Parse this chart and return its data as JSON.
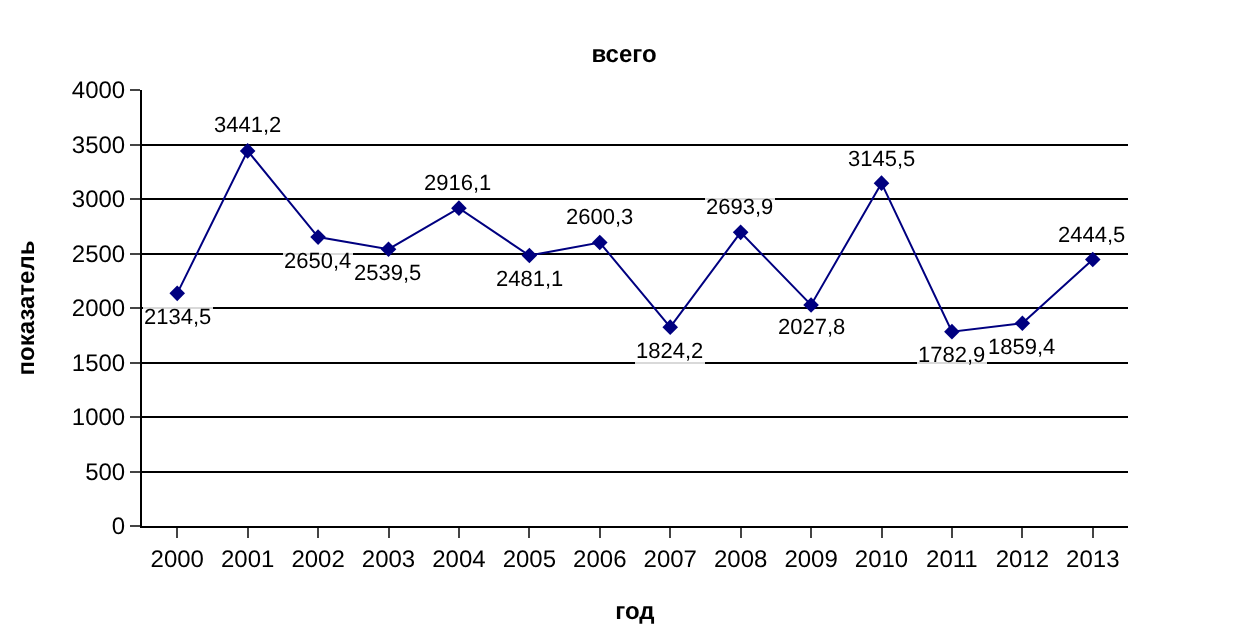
{
  "chart_data": {
    "type": "line",
    "title": "всего",
    "xlabel": "год",
    "ylabel": "показатель",
    "categories": [
      "2000",
      "2001",
      "2002",
      "2003",
      "2004",
      "2005",
      "2006",
      "2007",
      "2008",
      "2009",
      "2010",
      "2011",
      "2012",
      "2013"
    ],
    "series": [
      {
        "color": "#000080",
        "values": [
          2134.5,
          3441.2,
          2650.4,
          2539.5,
          2916.1,
          2481.1,
          2600.3,
          1824.2,
          2693.9,
          2027.8,
          3145.5,
          1782.9,
          1859.4,
          2444.5
        ],
        "value_labels": [
          "2134,5",
          "3441,2",
          "2650,4",
          "2539,5",
          "2916,1",
          "2481,1",
          "2600,3",
          "1824,2",
          "2693,9",
          "2027,8",
          "3145,5",
          "1782,9",
          "1859,4",
          "2444,5"
        ]
      }
    ],
    "ylim": [
      0,
      4000
    ],
    "yticks": [
      0,
      500,
      1000,
      1500,
      2000,
      2500,
      3000,
      3500,
      4000
    ],
    "grid": "y",
    "marker": "diamond",
    "line_style": "solid"
  }
}
